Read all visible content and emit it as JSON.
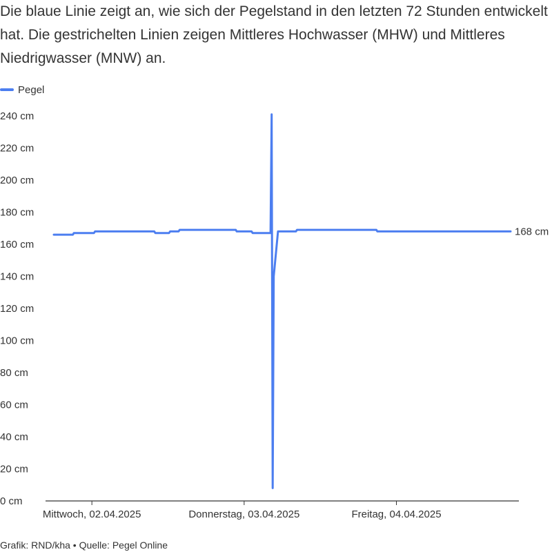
{
  "description": "Die blaue Linie zeigt an, wie sich der Pegelstand in den letzten 72 Stunden entwickelt hat. Die gestrichelten Linien zeigen Mittleres Hochwasser (MHW) und Mittleres Niedrigwasser (MNW) an.",
  "footer": "Grafik: RND/kha • Quelle: Pegel Online",
  "colors": {
    "series": "#4c7ef0",
    "axis": "#333333",
    "text": "#333333"
  },
  "chart_data": {
    "type": "line",
    "title": "",
    "xlabel": "",
    "ylabel": "",
    "unit": "cm",
    "ylim": [
      0,
      240
    ],
    "yticks": [
      0,
      20,
      40,
      60,
      80,
      100,
      120,
      140,
      160,
      180,
      200,
      220,
      240
    ],
    "ytick_labels": [
      "0 cm",
      "20 cm",
      "40 cm",
      "60 cm",
      "80 cm",
      "100 cm",
      "120 cm",
      "140 cm",
      "160 cm",
      "180 cm",
      "200 cm",
      "220 cm",
      "240 cm"
    ],
    "xlim": [
      "2025-04-01T18:00",
      "2025-04-04T18:00"
    ],
    "xticks": [
      "2025-04-02T00:00",
      "2025-04-03T00:00",
      "2025-04-04T00:00"
    ],
    "xtick_labels": [
      "Mittwoch, 02.04.2025",
      "Donnerstag, 03.04.2025",
      "Freitag, 04.04.2025"
    ],
    "grid": false,
    "legend_position": "top-left",
    "end_label": "168 cm",
    "series": [
      {
        "name": "Pegel",
        "points": [
          [
            "2025-04-01T18:00",
            166
          ],
          [
            "2025-04-01T21:00",
            166
          ],
          [
            "2025-04-01T21:10",
            167
          ],
          [
            "2025-04-02T00:20",
            167
          ],
          [
            "2025-04-02T00:30",
            168
          ],
          [
            "2025-04-02T09:50",
            168
          ],
          [
            "2025-04-02T10:00",
            167
          ],
          [
            "2025-04-02T12:10",
            167
          ],
          [
            "2025-04-02T12:20",
            168
          ],
          [
            "2025-04-02T13:40",
            168
          ],
          [
            "2025-04-02T13:50",
            169
          ],
          [
            "2025-04-02T22:40",
            169
          ],
          [
            "2025-04-02T22:50",
            168
          ],
          [
            "2025-04-03T01:10",
            168
          ],
          [
            "2025-04-03T01:20",
            167
          ],
          [
            "2025-04-03T04:10",
            167
          ],
          [
            "2025-04-03T04:20",
            241
          ],
          [
            "2025-04-03T04:30",
            8
          ],
          [
            "2025-04-03T04:40",
            140
          ],
          [
            "2025-04-03T05:20",
            168
          ],
          [
            "2025-04-03T08:10",
            168
          ],
          [
            "2025-04-03T08:20",
            169
          ],
          [
            "2025-04-03T20:50",
            169
          ],
          [
            "2025-04-03T21:00",
            168
          ],
          [
            "2025-04-04T18:00",
            168
          ]
        ]
      }
    ]
  }
}
